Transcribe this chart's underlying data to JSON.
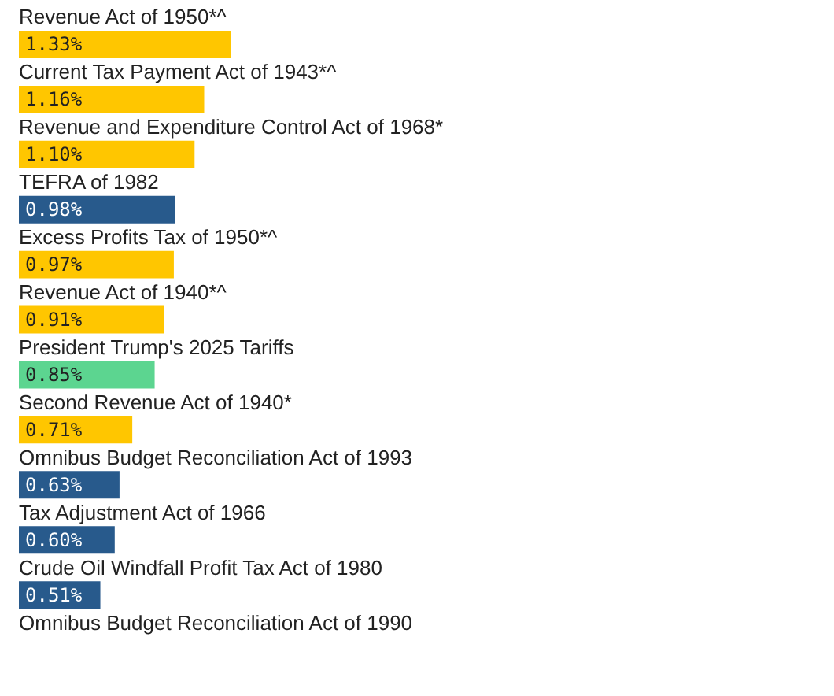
{
  "chart_data": {
    "type": "bar",
    "orientation": "horizontal",
    "categories": [
      "Revenue Act of 1950*^",
      "Current Tax Payment Act of 1943*^",
      "Revenue and Expenditure Control Act of 1968*",
      "TEFRA of 1982",
      "Excess Profits Tax of 1950*^",
      "Revenue Act of 1940*^",
      "President Trump's 2025 Tariffs",
      "Second Revenue Act of 1940*",
      "Omnibus Budget Reconciliation Act of 1993",
      "Tax Adjustment Act of 1966",
      "Crude Oil Windfall Profit Tax Act of 1980",
      "Omnibus Budget Reconciliation Act of 1990"
    ],
    "values": [
      1.33,
      1.16,
      1.1,
      0.98,
      0.97,
      0.91,
      0.85,
      0.71,
      0.63,
      0.6,
      0.51,
      null
    ],
    "value_labels": [
      "1.33%",
      "1.16%",
      "1.10%",
      "0.98%",
      "0.97%",
      "0.91%",
      "0.85%",
      "0.71%",
      "0.63%",
      "0.60%",
      "0.51%",
      null
    ],
    "colors": [
      "#ffc600",
      "#ffc600",
      "#ffc600",
      "#285a8c",
      "#ffc600",
      "#ffc600",
      "#5cd590",
      "#ffc600",
      "#285a8c",
      "#285a8c",
      "#285a8c",
      "#285a8c"
    ]
  }
}
